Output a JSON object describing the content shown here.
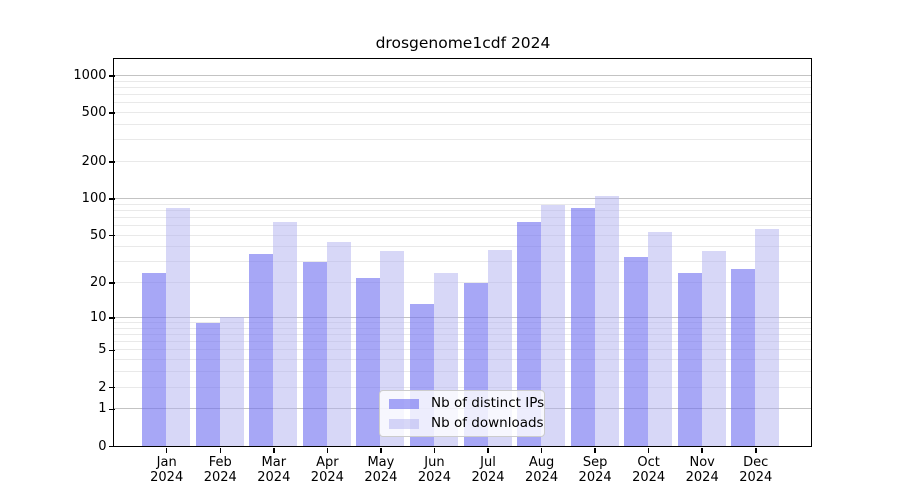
{
  "chart_data": {
    "type": "bar",
    "title": "drosgenome1cdf 2024",
    "categories": [
      "Jan",
      "Feb",
      "Mar",
      "Apr",
      "May",
      "Jun",
      "Jul",
      "Aug",
      "Sep",
      "Oct",
      "Nov",
      "Dec"
    ],
    "year_label": "2024",
    "series": [
      {
        "name": "Nb of distinct IPs",
        "color": "#a7a7f4",
        "fill": "rgba(113,113,240,0.62)",
        "values": [
          24,
          9,
          35,
          30,
          22,
          13,
          20,
          64,
          84,
          33,
          24,
          26
        ]
      },
      {
        "name": "Nb of downloads",
        "color": "#d7d7f7",
        "fill": "rgba(176,176,240,0.5)",
        "values": [
          83,
          10,
          64,
          44,
          37,
          24,
          38,
          88,
          104,
          53,
          37,
          56
        ]
      }
    ],
    "y_ticks": [
      0,
      1,
      2,
      5,
      10,
      20,
      50,
      100,
      200,
      500,
      1000
    ],
    "y_scale": "log10(1+x)",
    "ylim": [
      0,
      1270
    ],
    "grid": "horizontal",
    "grid_major_ticks": [
      1,
      10,
      100,
      1000
    ],
    "grid_major_color": "#c3c3c3",
    "grid_minor_color": "#e9e9e9",
    "axis_color": "#000000",
    "legend_position": "lower center"
  }
}
